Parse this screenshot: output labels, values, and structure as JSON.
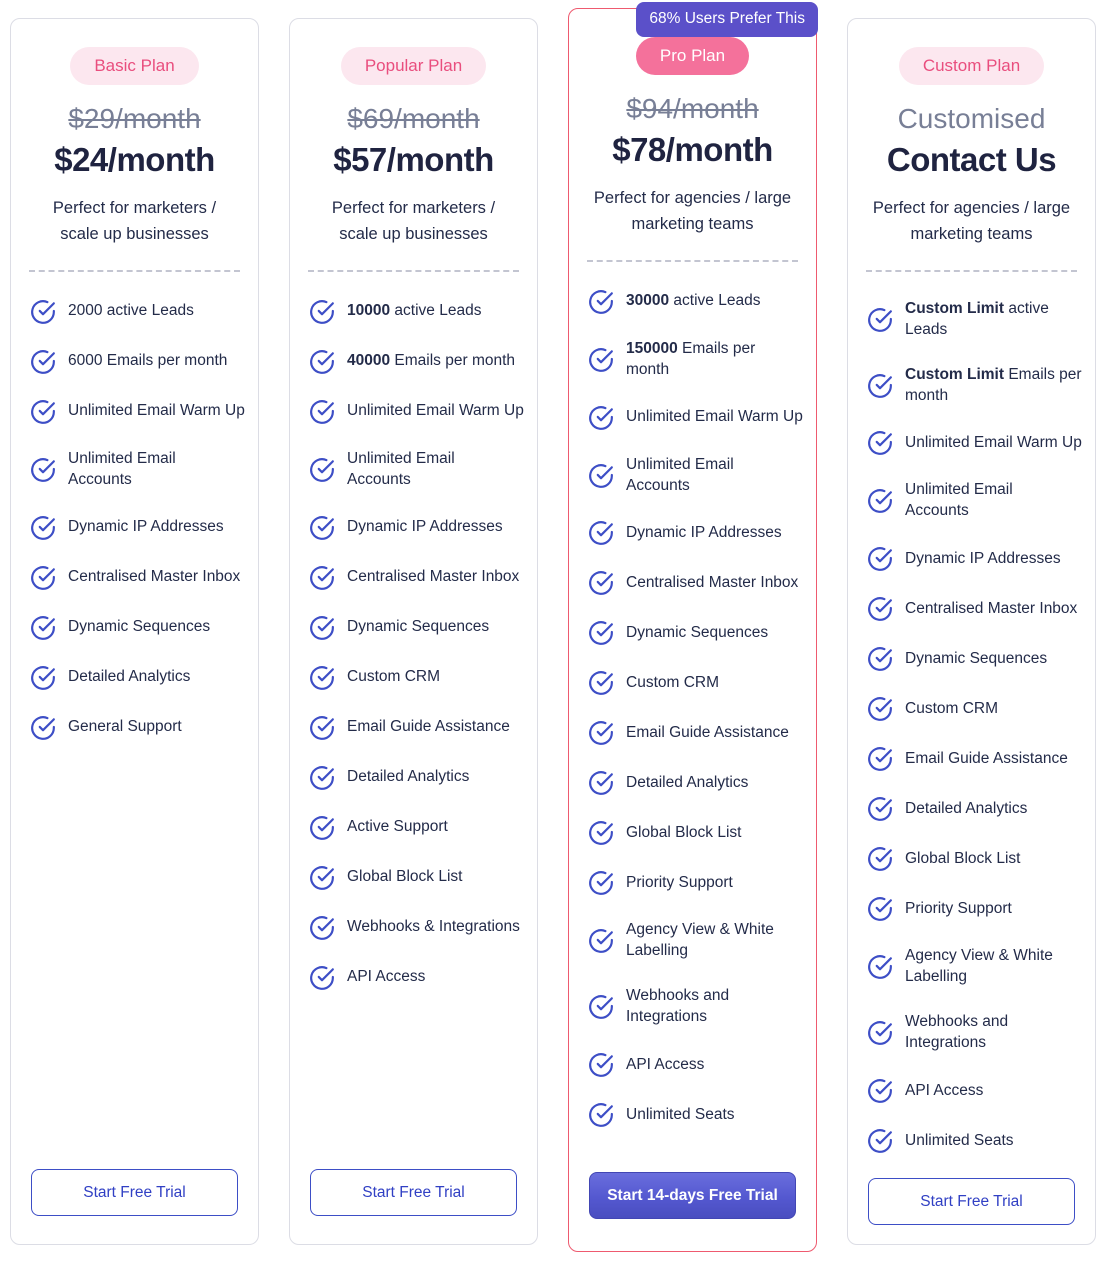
{
  "theme": {
    "accent_pink": "#E94E7E",
    "badge_pill_bg": "#FCE7EF",
    "pro_pill_bg": "#F4719B",
    "top_badge_bg": "#5B50C9",
    "top_badge_text": "#FFFFFF",
    "highlight_border": "#EE5A6F",
    "card_border": "#DCDDE5",
    "check_icon_color": "#3D4EC6",
    "price_color": "#1F2340",
    "old_price_color": "#787F96",
    "text_color": "#232B49",
    "button_outline_color": "#3D4EC6",
    "button_solid_bg": "#5458D0",
    "button_solid_text": "#FFFFFF"
  },
  "plans": [
    {
      "name": "basic",
      "badge_label": "Basic Plan",
      "badge_variant": "light",
      "top_badge": null,
      "old_price": "$29/month",
      "old_price_struck": true,
      "price": "$24/month",
      "description": "Perfect for marketers /\nscale up businesses",
      "features": [
        {
          "strong": "",
          "text": "2000 active Leads"
        },
        {
          "strong": "",
          "text": "6000 Emails per month"
        },
        {
          "strong": "",
          "text": "Unlimited Email Warm Up"
        },
        {
          "strong": "",
          "text": "Unlimited Email\nAccounts"
        },
        {
          "strong": "",
          "text": "Dynamic IP Addresses"
        },
        {
          "strong": "",
          "text": "Centralised Master Inbox"
        },
        {
          "strong": "",
          "text": "Dynamic Sequences"
        },
        {
          "strong": "",
          "text": "Detailed Analytics"
        },
        {
          "strong": "",
          "text": "General Support"
        }
      ],
      "cta_label": "Start Free Trial",
      "cta_variant": "outline",
      "highlighted": false
    },
    {
      "name": "popular",
      "badge_label": "Popular Plan",
      "badge_variant": "light",
      "top_badge": null,
      "old_price": "$69/month",
      "old_price_struck": true,
      "price": "$57/month",
      "description": "Perfect for marketers /\nscale up businesses",
      "features": [
        {
          "strong": "10000",
          "text": " active Leads"
        },
        {
          "strong": "40000",
          "text": " Emails per month"
        },
        {
          "strong": "",
          "text": "Unlimited Email Warm Up"
        },
        {
          "strong": "",
          "text": "Unlimited Email\nAccounts"
        },
        {
          "strong": "",
          "text": "Dynamic IP Addresses"
        },
        {
          "strong": "",
          "text": "Centralised Master Inbox"
        },
        {
          "strong": "",
          "text": "Dynamic Sequences"
        },
        {
          "strong": "",
          "text": "Custom CRM"
        },
        {
          "strong": "",
          "text": "Email Guide Assistance"
        },
        {
          "strong": "",
          "text": "Detailed Analytics"
        },
        {
          "strong": "",
          "text": "Active Support"
        },
        {
          "strong": "",
          "text": "Global Block List"
        },
        {
          "strong": "",
          "text": "Webhooks & Integrations"
        },
        {
          "strong": "",
          "text": "API Access"
        }
      ],
      "cta_label": "Start Free Trial",
      "cta_variant": "outline",
      "highlighted": false
    },
    {
      "name": "pro",
      "badge_label": "Pro Plan",
      "badge_variant": "solid",
      "top_badge": "68% Users Prefer This",
      "old_price": "$94/month",
      "old_price_struck": true,
      "price": "$78/month",
      "description": "Perfect for agencies / large\nmarketing teams",
      "features": [
        {
          "strong": "30000",
          "text": " active Leads"
        },
        {
          "strong": "150000",
          "text": " Emails per\nmonth"
        },
        {
          "strong": "",
          "text": "Unlimited Email Warm Up"
        },
        {
          "strong": "",
          "text": "Unlimited Email\nAccounts"
        },
        {
          "strong": "",
          "text": "Dynamic IP Addresses"
        },
        {
          "strong": "",
          "text": "Centralised Master Inbox"
        },
        {
          "strong": "",
          "text": "Dynamic Sequences"
        },
        {
          "strong": "",
          "text": "Custom CRM"
        },
        {
          "strong": "",
          "text": "Email Guide Assistance"
        },
        {
          "strong": "",
          "text": "Detailed Analytics"
        },
        {
          "strong": "",
          "text": "Global Block List"
        },
        {
          "strong": "",
          "text": "Priority Support"
        },
        {
          "strong": "",
          "text": "Agency View & White\nLabelling"
        },
        {
          "strong": "",
          "text": "Webhooks and\nIntegrations"
        },
        {
          "strong": "",
          "text": "API Access"
        },
        {
          "strong": "",
          "text": "Unlimited Seats"
        }
      ],
      "cta_label": "Start 14-days Free Trial",
      "cta_variant": "solid",
      "highlighted": true
    },
    {
      "name": "custom",
      "badge_label": "Custom Plan",
      "badge_variant": "light",
      "top_badge": null,
      "old_price": "Customised",
      "old_price_struck": false,
      "price": "Contact Us",
      "description": "Perfect for agencies / large\nmarketing teams",
      "features": [
        {
          "strong": "Custom Limit",
          "text": " active\nLeads"
        },
        {
          "strong": "Custom Limit",
          "text": " Emails per\nmonth"
        },
        {
          "strong": "",
          "text": "Unlimited Email Warm Up"
        },
        {
          "strong": "",
          "text": "Unlimited Email\nAccounts"
        },
        {
          "strong": "",
          "text": "Dynamic IP Addresses"
        },
        {
          "strong": "",
          "text": "Centralised Master Inbox"
        },
        {
          "strong": "",
          "text": "Dynamic Sequences"
        },
        {
          "strong": "",
          "text": "Custom CRM"
        },
        {
          "strong": "",
          "text": "Email Guide Assistance"
        },
        {
          "strong": "",
          "text": "Detailed Analytics"
        },
        {
          "strong": "",
          "text": "Global Block List"
        },
        {
          "strong": "",
          "text": "Priority Support"
        },
        {
          "strong": "",
          "text": "Agency View & White\nLabelling"
        },
        {
          "strong": "",
          "text": "Webhooks and\nIntegrations"
        },
        {
          "strong": "",
          "text": "API Access"
        },
        {
          "strong": "",
          "text": "Unlimited Seats"
        }
      ],
      "cta_label": "Start Free Trial",
      "cta_variant": "outline",
      "highlighted": false
    }
  ]
}
